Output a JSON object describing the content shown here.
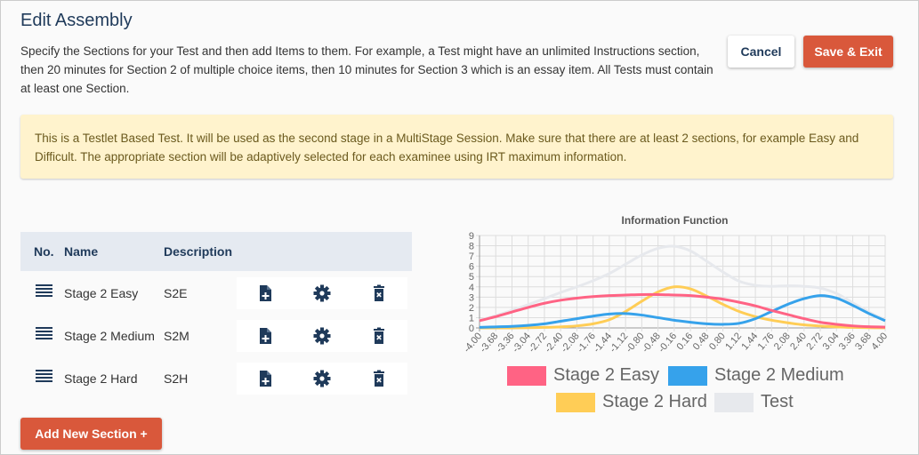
{
  "title": "Edit Assembly",
  "description": "Specify the Sections for your Test and then add Items to them. For example, a Test might have an unlimited Instructions section, then 20 minutes for Section 2 of multiple choice items, then 10 minutes for Section 3 which is an essay item. All Tests must contain at least one Section.",
  "buttons": {
    "cancel": "Cancel",
    "save": "Save & Exit",
    "add_section": "Add New Section +"
  },
  "alert": "This is a Testlet Based Test. It will be used as the second stage in a MultiStage Session. Make sure that there are at least 2 sections, for example Easy and Difficult. The appropriate section will be adaptively selected for each examinee using IRT maximum information.",
  "table": {
    "headers": [
      "No.",
      "Name",
      "Description"
    ],
    "rows": [
      {
        "name": "Stage 2 Easy",
        "description": "S2E"
      },
      {
        "name": "Stage 2 Medium",
        "description": "S2M"
      },
      {
        "name": "Stage 2 Hard",
        "description": "S2H"
      }
    ]
  },
  "chart_data": {
    "type": "line",
    "title": "Information Function",
    "ylim": [
      0,
      9
    ],
    "xlim": [
      -4,
      4
    ],
    "x": [
      -4.0,
      -3.68,
      -3.36,
      -3.04,
      -2.72,
      -2.4,
      -2.08,
      -1.76,
      -1.44,
      -1.12,
      -0.8,
      -0.48,
      -0.16,
      0.16,
      0.48,
      0.8,
      1.12,
      1.44,
      1.76,
      2.08,
      2.4,
      2.72,
      3.04,
      3.36,
      3.68,
      4.0
    ],
    "yticks": [
      0,
      1,
      2,
      3,
      4,
      5,
      6,
      7,
      8,
      9
    ],
    "series": [
      {
        "name": "Stage 2 Easy",
        "color": "#ff6384",
        "values": [
          0.7,
          1.1,
          1.55,
          2.0,
          2.4,
          2.7,
          2.9,
          3.05,
          3.15,
          3.2,
          3.25,
          3.25,
          3.2,
          3.15,
          3.0,
          2.8,
          2.5,
          2.15,
          1.7,
          1.3,
          0.9,
          0.55,
          0.35,
          0.2,
          0.12,
          0.08
        ]
      },
      {
        "name": "Stage 2 Medium",
        "color": "#36a2eb",
        "values": [
          0.05,
          0.1,
          0.15,
          0.25,
          0.4,
          0.65,
          0.9,
          1.15,
          1.35,
          1.4,
          1.25,
          1.0,
          0.75,
          0.55,
          0.4,
          0.35,
          0.45,
          0.9,
          1.6,
          2.3,
          2.85,
          3.15,
          2.9,
          2.2,
          1.4,
          0.7
        ]
      },
      {
        "name": "Stage 2 Hard",
        "color": "#ffcd56",
        "values": [
          0,
          0,
          0,
          0.02,
          0.05,
          0.1,
          0.2,
          0.4,
          0.8,
          1.6,
          2.6,
          3.5,
          4.0,
          3.8,
          3.1,
          2.3,
          1.6,
          1.1,
          0.75,
          0.5,
          0.3,
          0.18,
          0.1,
          0.05,
          0.02,
          0.01
        ]
      },
      {
        "name": "Test",
        "color": "#e7e9ed",
        "values": [
          0.75,
          1.2,
          1.7,
          2.27,
          2.85,
          3.45,
          4.0,
          4.6,
          5.3,
          6.2,
          7.1,
          7.75,
          7.95,
          7.5,
          6.5,
          5.45,
          4.55,
          4.15,
          4.05,
          4.1,
          4.05,
          3.88,
          3.35,
          2.45,
          1.54,
          0.79
        ]
      }
    ],
    "legend": "bottom",
    "grid": true
  }
}
